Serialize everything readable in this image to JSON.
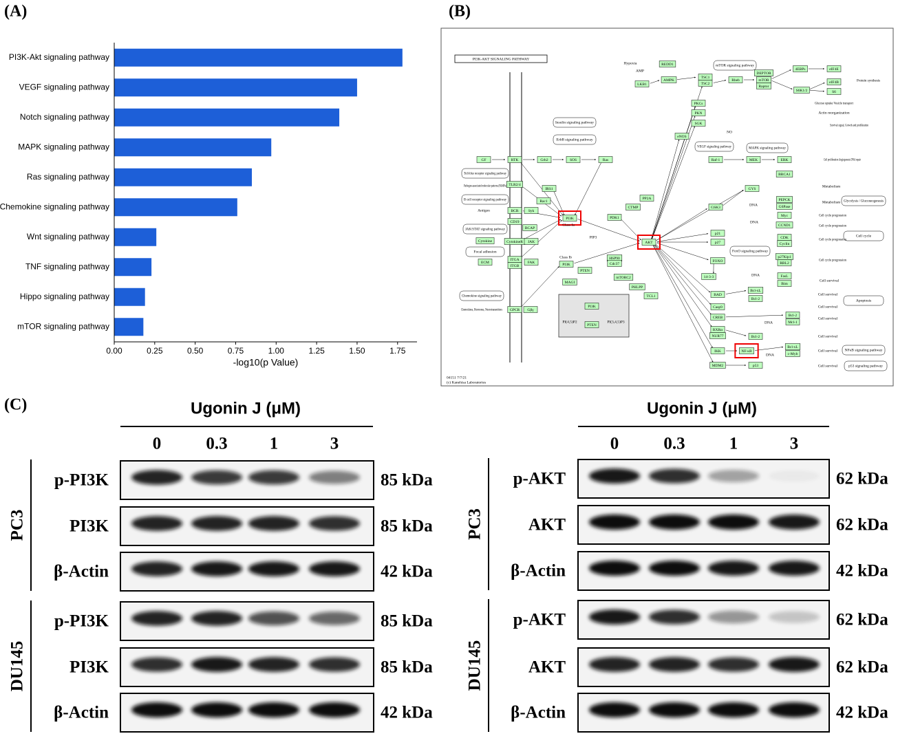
{
  "panel_labels": [
    "(A)",
    "(B)",
    "(C)"
  ],
  "chart_data": {
    "type": "bar",
    "orientation": "horizontal",
    "categories": [
      "PI3K-Akt signaling pathway",
      "VEGF signaling pathway",
      "Notch signaling pathway",
      "MAPK signaling pathway",
      "Ras signaling pathway",
      "Chemokine signaling pathway",
      "Wnt signaling pathway",
      "TNF signaling pathway",
      "Hippo signaling pathway",
      "mTOR signaling pathway"
    ],
    "values": [
      1.78,
      1.5,
      1.39,
      0.97,
      0.85,
      0.76,
      0.26,
      0.23,
      0.19,
      0.18
    ],
    "color": "#1d5fd8",
    "xlabel": "-log10(p Value)",
    "xlim": [
      0,
      1.87
    ],
    "xticks": [
      {
        "value": 0,
        "label": "0.00"
      },
      {
        "value": 0.25,
        "label": "0.25"
      },
      {
        "value": 0.5,
        "label": "0.50"
      },
      {
        "value": 0.75,
        "label": "0.75"
      },
      {
        "value": 1,
        "label": "1.00"
      },
      {
        "value": 1.25,
        "label": "1.25"
      },
      {
        "value": 1.5,
        "label": "1.50"
      },
      {
        "value": 1.75,
        "label": "1.75"
      }
    ]
  },
  "pathway": {
    "title": "PI3K-AKT SIGNALING PATHWAY",
    "genes": [
      "REDD1",
      "AMPK",
      "LKB1",
      "TSC1",
      "TSC2",
      "Rheb",
      "DEPTOR",
      "mTOR",
      "Raptor",
      "4EBPs",
      "eIF4E",
      "S6K1/2",
      "eIF4B",
      "S6",
      "PKCs",
      "PKN",
      "SGK",
      "eNOS",
      "Raf-1",
      "MEK",
      "ERK",
      "BRCA1",
      "GF",
      "RTK",
      "Grb2",
      "SOS",
      "Ras",
      "TLR2/4",
      "IRS1",
      "Rac1",
      "BCR",
      "Syk",
      "CD19",
      "BCAP",
      "Cytokine",
      "CytokineR",
      "JAK",
      "ECM",
      "ITGA",
      "ITGB",
      "FAK",
      "PI3K",
      "PDK1",
      "PP2A",
      "CTMP",
      "AKT",
      "HSP90",
      "Cdc37",
      "mTORC2",
      "PHLPP",
      "TCL1",
      "PI3K",
      "PTEN",
      "MAGI",
      "GPCR",
      "Gβγ",
      "PI3K",
      "PTEN",
      "GYS",
      "GSK3",
      "PEPCK",
      "G6Pase",
      "Myc",
      "CCND1",
      "p21",
      "p27",
      "CDK",
      "Cyclin",
      "FOXO",
      "p27Kip1",
      "RBL2",
      "14-3-3",
      "FasL",
      "Bim",
      "BAD",
      "Bcl-xL",
      "Bcl-2",
      "Casp9",
      "CREB",
      "Bcl-2",
      "Mcl-1",
      "RXRα",
      "NUR77",
      "Bcl-2",
      "IKK",
      "NF-κB",
      "Bcl-xL",
      "c-Myb",
      "MDM2",
      "p53"
    ],
    "maps": [
      "mTOR signaling pathway",
      "Insulin signaling pathway",
      "ErbB signaling pathway",
      "VEGF signaling pathway",
      "MAPK signaling pathway",
      "Toll-like receptor signaling pathway",
      "B cell receptor signaling pathway",
      "JAK/STAT signaling pathway",
      "Focal adhesion",
      "Chemokine signaling pathway",
      "FoxO signaling pathway",
      "Glycolysis / Gluconeogenesis",
      "Cell cycle",
      "Apoptosis",
      "NFκB signaling pathway",
      "p53 signaling pathway"
    ],
    "notes": [
      "Hypoxia",
      "AMP",
      "Protein synthesis",
      "Glucose uptake Vesicle transport",
      "Actin reorganization",
      "Survival signal, Growth and proliferation",
      "NO",
      "Cell proliferation Angiogenesis DNA repair",
      "Pathogen-associated molecular patterns (PAMPs)",
      "Antigen",
      "Class Ia",
      "PIP3",
      "Class Ib",
      "Chemokines, Hormones, Neurotransmitters",
      "PI(4,5)P2",
      "PI(3,4,5)P3",
      "Metabolism",
      "DNA",
      "Metabolism",
      "Cell cycle progression",
      "DNA",
      "Cell cycle progression",
      "Cell cycle progression",
      "Cell cycle progression",
      "DNA",
      "Cell survival",
      "Cell survival",
      "Cell survival",
      "DNA",
      "Cell survival",
      "Cell survival",
      "DNA",
      "Cell survival",
      "Cell survival"
    ],
    "footer": [
      "04151 7/7/21",
      "(c) Kanehisa Laboratories"
    ]
  },
  "blots": [
    {
      "title": "Ugonin J (μM)",
      "doses": [
        "0",
        "0.3",
        "1",
        "3"
      ],
      "cell_lines": [
        {
          "name": "PC3",
          "rows": [
            {
              "protein": "p-PI3K",
              "size": "85 kDa"
            },
            {
              "protein": "PI3K",
              "size": "85 kDa"
            },
            {
              "protein": "β-Actin",
              "size": "42 kDa"
            }
          ]
        },
        {
          "name": "DU145",
          "rows": [
            {
              "protein": "p-PI3K",
              "size": "85 kDa"
            },
            {
              "protein": "PI3K",
              "size": "85 kDa"
            },
            {
              "protein": "β-Actin",
              "size": "42 kDa"
            }
          ]
        }
      ]
    },
    {
      "title": "Ugonin J (μM)",
      "doses": [
        "0",
        "0.3",
        "1",
        "3"
      ],
      "cell_lines": [
        {
          "name": "PC3",
          "rows": [
            {
              "protein": "p-AKT",
              "size": "62 kDa"
            },
            {
              "protein": "AKT",
              "size": "62 kDa"
            },
            {
              "protein": "β-Actin",
              "size": "42 kDa"
            }
          ]
        },
        {
          "name": "DU145",
          "rows": [
            {
              "protein": "p-AKT",
              "size": "62 kDa"
            },
            {
              "protein": "AKT",
              "size": "62 kDa"
            },
            {
              "protein": "β-Actin",
              "size": "42 kDa"
            }
          ]
        }
      ]
    }
  ]
}
